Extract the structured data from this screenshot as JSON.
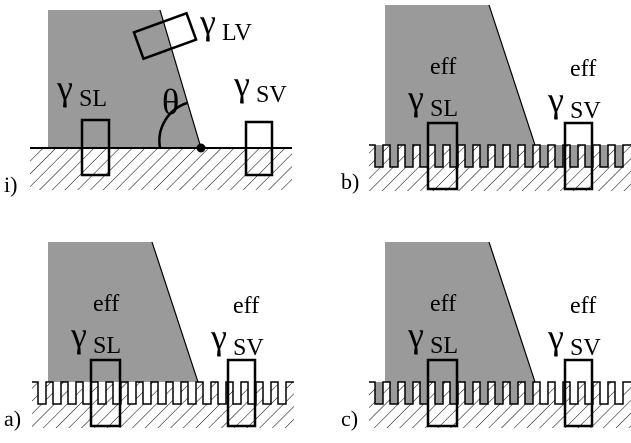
{
  "panels": [
    {
      "label": "i)",
      "angle": "θ",
      "symbols": [
        {
          "base": "γ",
          "sub": "LV"
        },
        {
          "base": "γ",
          "sub": "SL"
        },
        {
          "base": "γ",
          "sub": "SV"
        }
      ]
    },
    {
      "label": "b)",
      "symbols": [
        {
          "base": "γ",
          "sup": "eff",
          "sub": "SL"
        },
        {
          "base": "γ",
          "sup": "eff",
          "sub": "SV"
        }
      ]
    },
    {
      "label": "a)",
      "symbols": [
        {
          "base": "γ",
          "sup": "eff",
          "sub": "SL"
        },
        {
          "base": "γ",
          "sup": "eff",
          "sub": "SV"
        }
      ]
    },
    {
      "label": "c)",
      "symbols": [
        {
          "base": "γ",
          "sup": "eff",
          "sub": "SL"
        },
        {
          "base": "γ",
          "sup": "eff",
          "sub": "SV"
        }
      ]
    }
  ]
}
